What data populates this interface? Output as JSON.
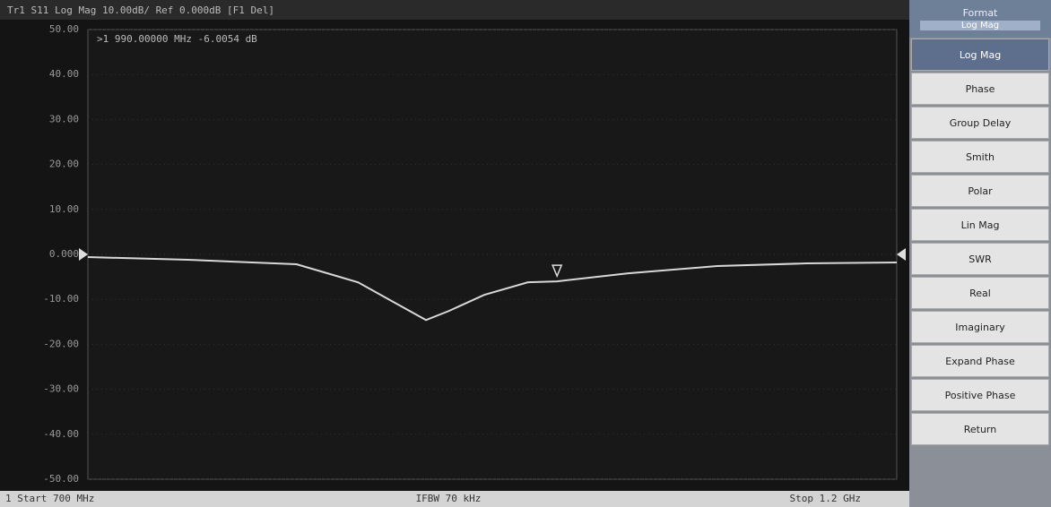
{
  "header": "Tr1 S11 Log Mag 10.00dB/ Ref 0.000dB [F1 Del]",
  "chart_data": {
    "type": "line",
    "x": [
      700,
      762,
      829,
      867,
      889,
      909,
      923,
      945,
      972,
      990,
      1034,
      1089,
      1144,
      1200
    ],
    "series": [
      {
        "name": "S11",
        "color": "#d8d8d8",
        "values": [
          -0.6,
          -1.2,
          -2.2,
          -6.2,
          -10.6,
          -14.6,
          -12.6,
          -9,
          -6.2,
          -6.0,
          -4.2,
          -2.6,
          -2.0,
          -1.8
        ]
      }
    ],
    "xlim": [
      700,
      1200
    ],
    "ylim": [
      -50,
      50
    ],
    "yticks": [
      {
        "value": 50,
        "label": "50.00"
      },
      {
        "value": 40,
        "label": "40.00"
      },
      {
        "value": 30,
        "label": "30.00"
      },
      {
        "value": 20,
        "label": "20.00"
      },
      {
        "value": 10,
        "label": "10.00"
      },
      {
        "value": 0,
        "label": "0.000"
      },
      {
        "value": -10,
        "label": "-10.00"
      },
      {
        "value": -20,
        "label": "-20.00"
      },
      {
        "value": -30,
        "label": "-30.00"
      },
      {
        "value": -40,
        "label": "-40.00"
      },
      {
        "value": -50,
        "label": "-50.00"
      }
    ],
    "grid": true,
    "marker": {
      "label": ">1  990.00000 MHz  -6.0054 dB",
      "x": 990,
      "y": -6.0054
    }
  },
  "footer": {
    "start": "1  Start 700 MHz",
    "ifbw": "IFBW 70 kHz",
    "stop": "Stop 1.2 GHz"
  },
  "menu": {
    "title": "Format",
    "current": "Log Mag",
    "items": [
      "Log Mag",
      "Phase",
      "Group Delay",
      "Smith",
      "Polar",
      "Lin Mag",
      "SWR",
      "Real",
      "Imaginary",
      "Expand Phase",
      "Positive Phase",
      "Return"
    ]
  }
}
